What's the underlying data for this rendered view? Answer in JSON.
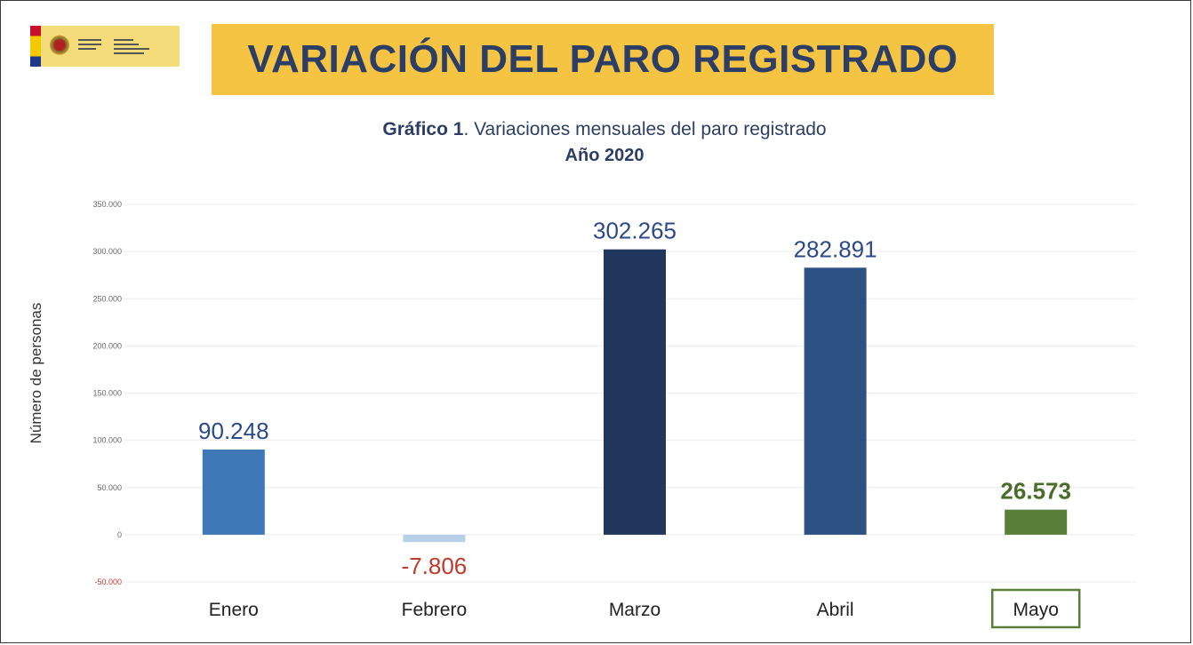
{
  "header": {
    "logo": "spain-government-logo",
    "title": "VARIACIÓN DEL PARO REGISTRADO"
  },
  "chart_data": {
    "type": "bar",
    "title_bold": "Gráfico 1",
    "title_rest": ". Variaciones mensuales del paro registrado",
    "subtitle": "Año 2020",
    "ylabel": "Número de personas",
    "xlabel": "",
    "categories": [
      "Enero",
      "Febrero",
      "Marzo",
      "Abril",
      "Mayo"
    ],
    "values": [
      90248,
      -7806,
      302265,
      282891,
      26573
    ],
    "value_labels": [
      "90.248",
      "-7.806",
      "302.265",
      "282.891",
      "26.573"
    ],
    "bar_colors": [
      "#3f78b6",
      "#b8cfe8",
      "#22375e",
      "#2d5183",
      "#5a7f3a"
    ],
    "label_colors": [
      "#2b4a8a",
      "#c0392b",
      "#2b4a8a",
      "#2b4a8a",
      "#4a6e2a"
    ],
    "highlight_category": "Mayo",
    "highlight_color": "#5a7f3a",
    "yticks": [
      {
        "value": 350000,
        "label": "350.000"
      },
      {
        "value": 300000,
        "label": "300.000"
      },
      {
        "value": 250000,
        "label": "250.000"
      },
      {
        "value": 200000,
        "label": "200.000"
      },
      {
        "value": 150000,
        "label": "150.000"
      },
      {
        "value": 100000,
        "label": "100.000"
      },
      {
        "value": 50000,
        "label": "50.000"
      },
      {
        "value": 0,
        "label": "0"
      },
      {
        "value": -50000,
        "label": "-50.000"
      }
    ],
    "negative_tick_color": "#c0392b",
    "ylim": [
      -50000,
      350000
    ],
    "grid": true,
    "legend": "none"
  }
}
